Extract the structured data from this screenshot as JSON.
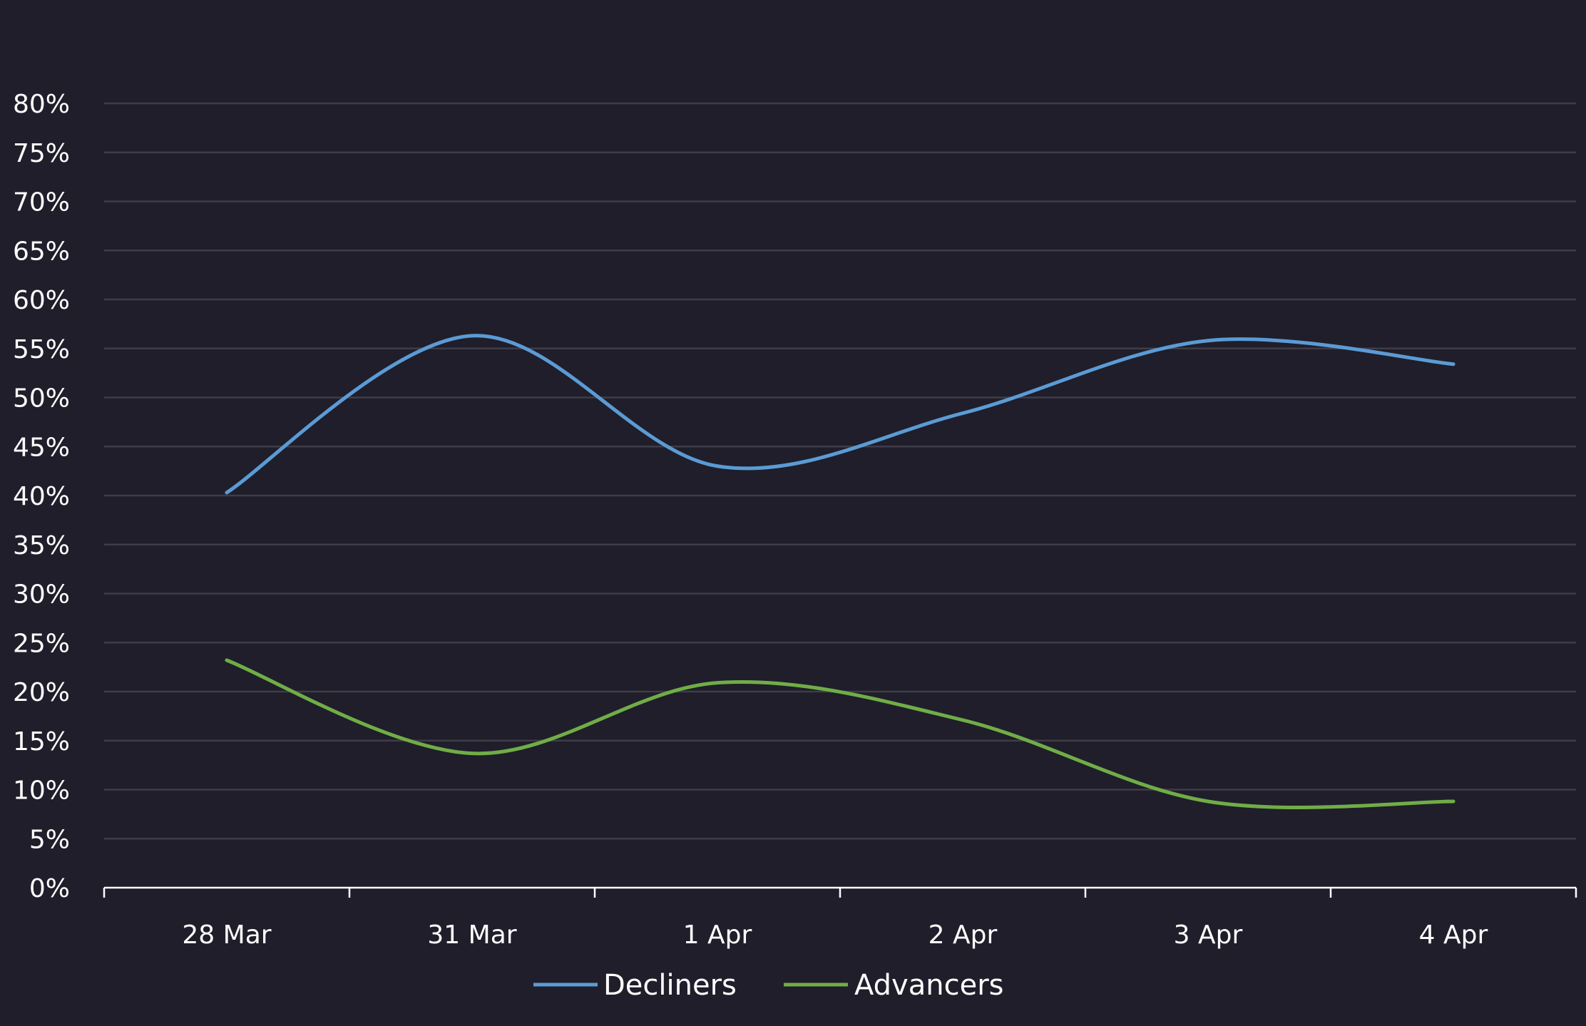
{
  "chart_data": {
    "type": "line",
    "title": "",
    "xlabel": "",
    "ylabel": "",
    "categories": [
      "28 Mar",
      "31 Mar",
      "1 Apr",
      "2 Apr",
      "3 Apr",
      "4 Apr"
    ],
    "y_ticks": [
      "0%",
      "5%",
      "10%",
      "15%",
      "20%",
      "25%",
      "30%",
      "35%",
      "40%",
      "45%",
      "50%",
      "55%",
      "60%",
      "65%",
      "70%",
      "75%",
      "80%"
    ],
    "ylim": [
      0,
      80
    ],
    "grid": true,
    "legend_position": "bottom-center",
    "series": [
      {
        "name": "Decliners",
        "color": "#5b9bd5",
        "values": [
          40.3,
          56.3,
          43.0,
          48.4,
          55.8,
          53.4
        ]
      },
      {
        "name": "Advancers",
        "color": "#70ad47",
        "values": [
          23.2,
          13.7,
          20.9,
          17.1,
          8.8,
          8.8
        ]
      }
    ]
  }
}
